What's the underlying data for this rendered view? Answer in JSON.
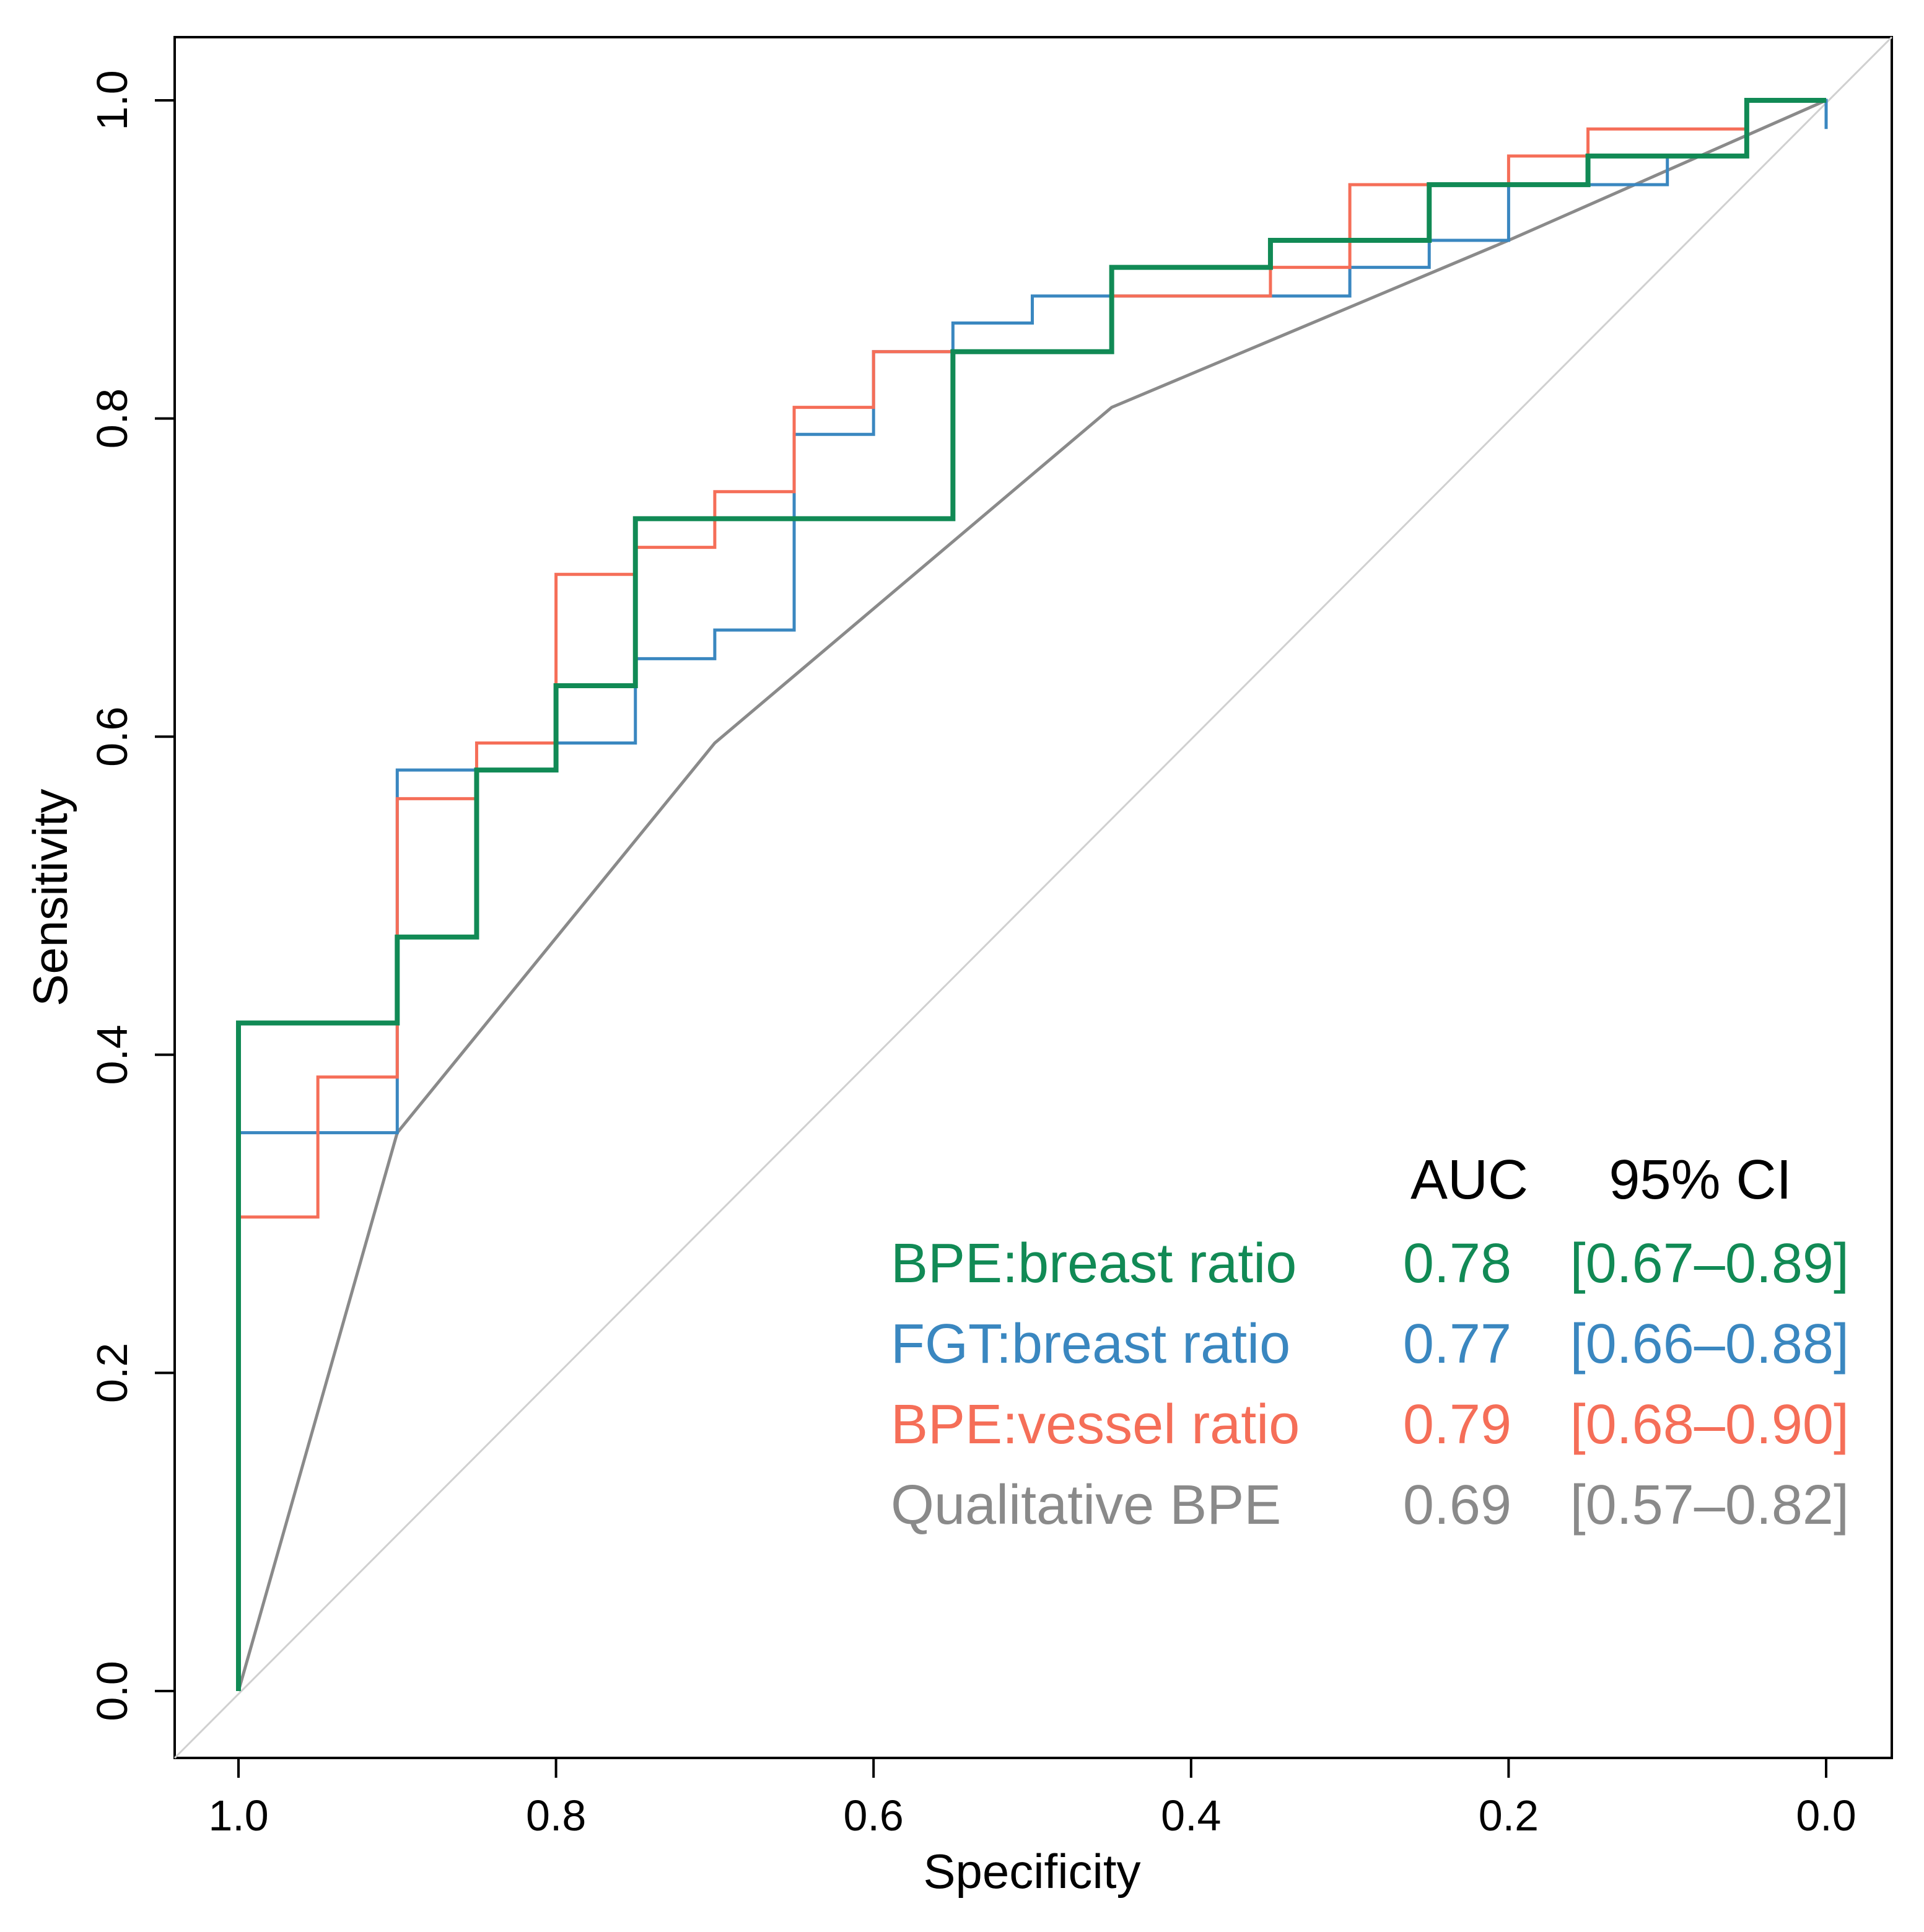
{
  "chart_data": {
    "type": "line",
    "title": "",
    "xlabel": "Specificity",
    "ylabel": "Sensitivity",
    "xlim": [
      1.0,
      0.0
    ],
    "ylim": [
      0.0,
      1.0
    ],
    "x_reversed": true,
    "grid": false,
    "xticks": [
      "1.0",
      "0.8",
      "0.6",
      "0.4",
      "0.2",
      "0.0"
    ],
    "yticks": [
      "0.0",
      "0.2",
      "0.4",
      "0.6",
      "0.8",
      "1.0"
    ],
    "reference_line": {
      "from": [
        1.0,
        0.0
      ],
      "to": [
        0.0,
        1.0
      ],
      "color": "#d0d0d0"
    },
    "legend": {
      "position": "bottom-right",
      "header_auc": "AUC",
      "header_ci": "95% CI"
    },
    "series": [
      {
        "name": "BPE:breast ratio",
        "auc": "0.78",
        "ci": "[0.67–0.89]",
        "color": "#118a55",
        "points": [
          [
            1.0,
            0.0
          ],
          [
            1.0,
            0.42
          ],
          [
            0.9,
            0.42
          ],
          [
            0.9,
            0.474
          ],
          [
            0.85,
            0.474
          ],
          [
            0.85,
            0.579
          ],
          [
            0.8,
            0.579
          ],
          [
            0.8,
            0.632
          ],
          [
            0.75,
            0.632
          ],
          [
            0.75,
            0.737
          ],
          [
            0.55,
            0.737
          ],
          [
            0.55,
            0.842
          ],
          [
            0.45,
            0.842
          ],
          [
            0.45,
            0.895
          ],
          [
            0.35,
            0.895
          ],
          [
            0.35,
            0.912
          ],
          [
            0.25,
            0.912
          ],
          [
            0.25,
            0.947
          ],
          [
            0.15,
            0.947
          ],
          [
            0.15,
            0.965
          ],
          [
            0.05,
            0.965
          ],
          [
            0.05,
            0.982
          ],
          [
            0.05,
            1.0
          ],
          [
            0.0,
            1.0
          ]
        ]
      },
      {
        "name": "FGT:breast ratio",
        "auc": "0.77",
        "ci": "[0.66–0.88]",
        "color": "#3a87c0",
        "points": [
          [
            1.0,
            0.0
          ],
          [
            1.0,
            0.351
          ],
          [
            0.9,
            0.351
          ],
          [
            0.9,
            0.579
          ],
          [
            0.8,
            0.579
          ],
          [
            0.8,
            0.596
          ],
          [
            0.75,
            0.596
          ],
          [
            0.75,
            0.649
          ],
          [
            0.7,
            0.649
          ],
          [
            0.7,
            0.667
          ],
          [
            0.65,
            0.667
          ],
          [
            0.65,
            0.79
          ],
          [
            0.6,
            0.79
          ],
          [
            0.6,
            0.842
          ],
          [
            0.55,
            0.842
          ],
          [
            0.55,
            0.86
          ],
          [
            0.5,
            0.86
          ],
          [
            0.5,
            0.877
          ],
          [
            0.35,
            0.877
          ],
          [
            0.3,
            0.877
          ],
          [
            0.3,
            0.895
          ],
          [
            0.25,
            0.895
          ],
          [
            0.25,
            0.912
          ],
          [
            0.2,
            0.912
          ],
          [
            0.2,
            0.947
          ],
          [
            0.1,
            0.947
          ],
          [
            0.1,
            0.965
          ],
          [
            0.05,
            0.965
          ],
          [
            0.05,
            1.0
          ],
          [
            0.0,
            1.0
          ],
          [
            0.0,
            0.982
          ],
          [
            0.0,
            1.0
          ]
        ]
      },
      {
        "name": "BPE:vessel ratio",
        "auc": "0.79",
        "ci": "[0.68–0.90]",
        "color": "#f56e58",
        "points": [
          [
            1.0,
            0.0
          ],
          [
            1.0,
            0.298
          ],
          [
            0.95,
            0.298
          ],
          [
            0.95,
            0.386
          ],
          [
            0.9,
            0.386
          ],
          [
            0.9,
            0.561
          ],
          [
            0.85,
            0.561
          ],
          [
            0.85,
            0.596
          ],
          [
            0.8,
            0.596
          ],
          [
            0.8,
            0.702
          ],
          [
            0.75,
            0.702
          ],
          [
            0.75,
            0.719
          ],
          [
            0.7,
            0.719
          ],
          [
            0.7,
            0.754
          ],
          [
            0.65,
            0.754
          ],
          [
            0.65,
            0.807
          ],
          [
            0.6,
            0.807
          ],
          [
            0.6,
            0.842
          ],
          [
            0.45,
            0.842
          ],
          [
            0.45,
            0.877
          ],
          [
            0.35,
            0.877
          ],
          [
            0.35,
            0.895
          ],
          [
            0.3,
            0.895
          ],
          [
            0.3,
            0.947
          ],
          [
            0.2,
            0.947
          ],
          [
            0.2,
            0.965
          ],
          [
            0.15,
            0.965
          ],
          [
            0.15,
            0.982
          ],
          [
            0.05,
            0.982
          ],
          [
            0.05,
            1.0
          ],
          [
            0.0,
            1.0
          ]
        ]
      },
      {
        "name": "Qualitative BPE",
        "auc": "0.69",
        "ci": "[0.57–0.82]",
        "color": "#8a8a8a",
        "points": [
          [
            1.0,
            0.0
          ],
          [
            0.9,
            0.351
          ],
          [
            0.7,
            0.596
          ],
          [
            0.45,
            0.807
          ],
          [
            0.2,
            0.912
          ],
          [
            0.0,
            1.0
          ]
        ]
      }
    ]
  }
}
